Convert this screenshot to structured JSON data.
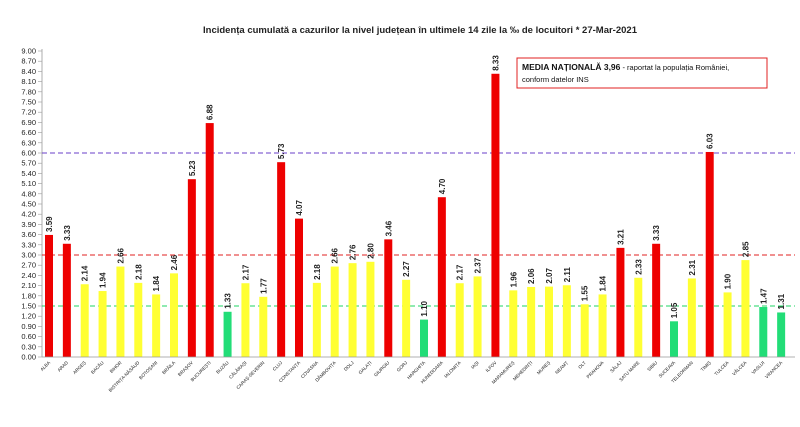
{
  "chart_data": {
    "type": "bar",
    "title": "Incidența cumulată a cazurilor la nivel județean în ultimele 14 zile la ‰ de locuitori * 27-Mar-2021",
    "categories": [
      "ALBA",
      "ARAD",
      "ARGEȘ",
      "BACĂU",
      "BIHOR",
      "BISTRIȚA-NĂSĂUD",
      "BOTOȘANI",
      "BRĂILA",
      "BRAȘOV",
      "BUCUREȘTI",
      "BUZĂU",
      "CĂLĂRAȘI",
      "CARAȘ-SEVERIN",
      "CLUJ",
      "CONSTANȚA",
      "COVASNA",
      "DÂMBOVIȚA",
      "DOLJ",
      "GALAȚI",
      "GIURGIU",
      "GORJ",
      "HARGHITA",
      "HUNEDOARA",
      "IALOMIȚA",
      "IAȘI",
      "ILFOV",
      "MARAMUREȘ",
      "MEHEDINȚI",
      "MUREȘ",
      "NEAMȚ",
      "OLT",
      "PRAHOVA",
      "SĂLAJ",
      "SATU MARE",
      "SIBIU",
      "SUCEAVA",
      "TELEORMAN",
      "TIMIȘ",
      "TULCEA",
      "VÂLCEA",
      "VASLUI",
      "VRANCEA"
    ],
    "values": [
      3.59,
      3.33,
      2.14,
      1.94,
      2.66,
      2.18,
      1.84,
      2.46,
      5.23,
      6.88,
      1.33,
      2.17,
      1.77,
      5.73,
      4.07,
      2.18,
      2.66,
      2.76,
      2.8,
      3.46,
      2.27,
      1.1,
      4.7,
      2.17,
      2.37,
      8.33,
      1.96,
      2.06,
      2.07,
      2.11,
      1.55,
      1.84,
      3.21,
      2.33,
      3.33,
      1.05,
      2.31,
      6.03,
      1.9,
      2.85,
      1.47,
      1.31
    ],
    "value_labels": [
      "3.59",
      "3.33",
      "2.14",
      "1.94",
      "2.66",
      "2.18",
      "1.84",
      "2.46",
      "5.23",
      "6.88",
      "1.33",
      "2.17",
      "1.77",
      "5.73",
      "4.07",
      "2.18",
      "2.66",
      "2.76",
      "2.80",
      "3.46",
      "2.27",
      "1.10",
      "4.70",
      "2.17",
      "2.37",
      "8.33",
      "1.96",
      "2.06",
      "2.07",
      "2.11",
      "1.55",
      "1.84",
      "3.21",
      "2.33",
      "3.33",
      "1.05",
      "2.31",
      "6.03",
      "1.90",
      "2.85",
      "1.47",
      "1.31"
    ],
    "ylim": [
      0,
      9
    ],
    "yticks": [
      "0.00",
      "0.30",
      "0.60",
      "0.90",
      "1.20",
      "1.50",
      "1.80",
      "2.10",
      "2.40",
      "2.70",
      "3.00",
      "3.30",
      "3.60",
      "3.90",
      "4.20",
      "4.50",
      "4.80",
      "5.10",
      "5.40",
      "5.70",
      "6.00",
      "6.30",
      "6.60",
      "6.90",
      "7.20",
      "7.50",
      "7.80",
      "8.10",
      "8.40",
      "8.70",
      "9.00"
    ],
    "xlabel": "",
    "ylabel": "",
    "thresholds": [
      {
        "value": 1.5,
        "color": "#1fd663"
      },
      {
        "value": 3.0,
        "color": "#e02020"
      },
      {
        "value": 6.0,
        "color": "#6a3fc8"
      }
    ],
    "bar_colors": {
      "green": "#22dd77",
      "yellow": "#ffff33",
      "red": "#ee0000"
    },
    "annotation": {
      "bold": "MEDIA NAȚIONALĂ  3,96",
      "line1": " - raportat la populația României,",
      "line2": "conform datelor INS",
      "border_color": "#e02020"
    },
    "grid": false
  }
}
